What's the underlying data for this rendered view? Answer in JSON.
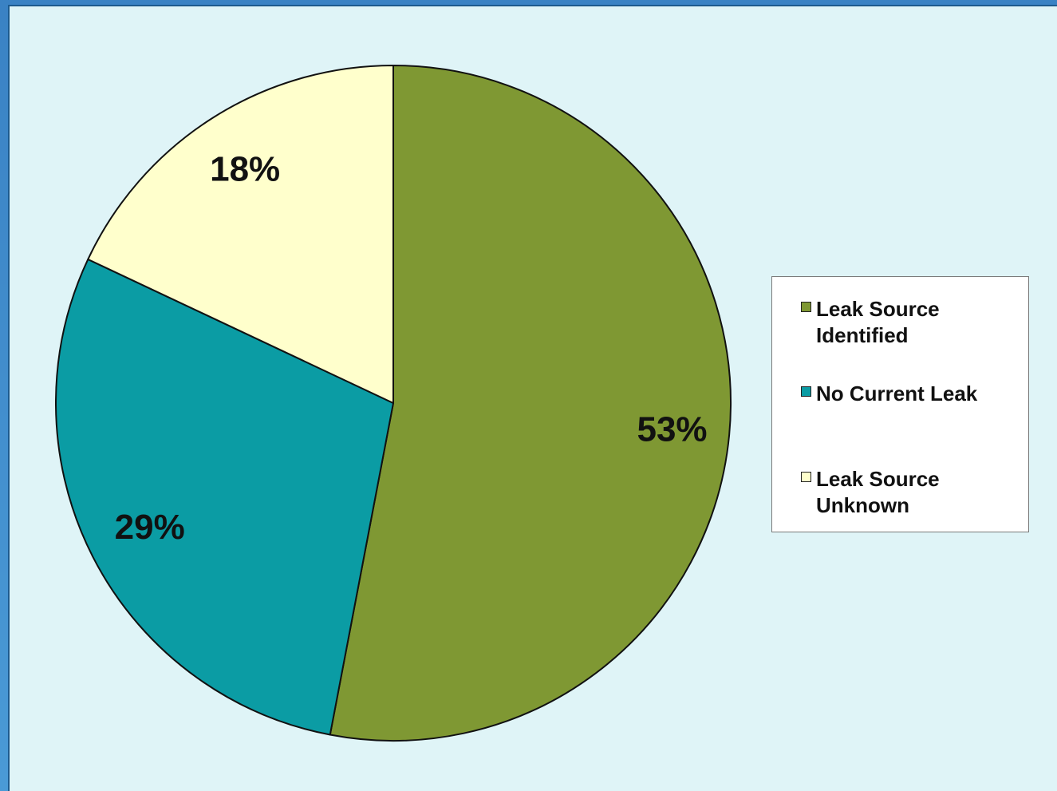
{
  "chart_data": {
    "type": "pie",
    "categories": [
      "Leak Source Identified",
      "No Current Leak",
      "Leak Source Unknown"
    ],
    "values": [
      53,
      29,
      18
    ],
    "data_labels": [
      "53%",
      "29%",
      "18%"
    ],
    "colors": [
      "#7f9833",
      "#0b9ca4",
      "#ffffcc"
    ],
    "legend": {
      "placement": "right",
      "items": [
        {
          "label": "Leak Source Identified",
          "color": "#7f9833"
        },
        {
          "label": "No Current Leak",
          "color": "#0b9ca4"
        },
        {
          "label": "Leak Source Unknown",
          "color": "#ffffcc"
        }
      ]
    },
    "start_angle": "12 o'clock",
    "direction": "clockwise"
  },
  "theme": {
    "background": "#dff4f7",
    "frame": "#2a74b8",
    "outline": "#111111"
  }
}
